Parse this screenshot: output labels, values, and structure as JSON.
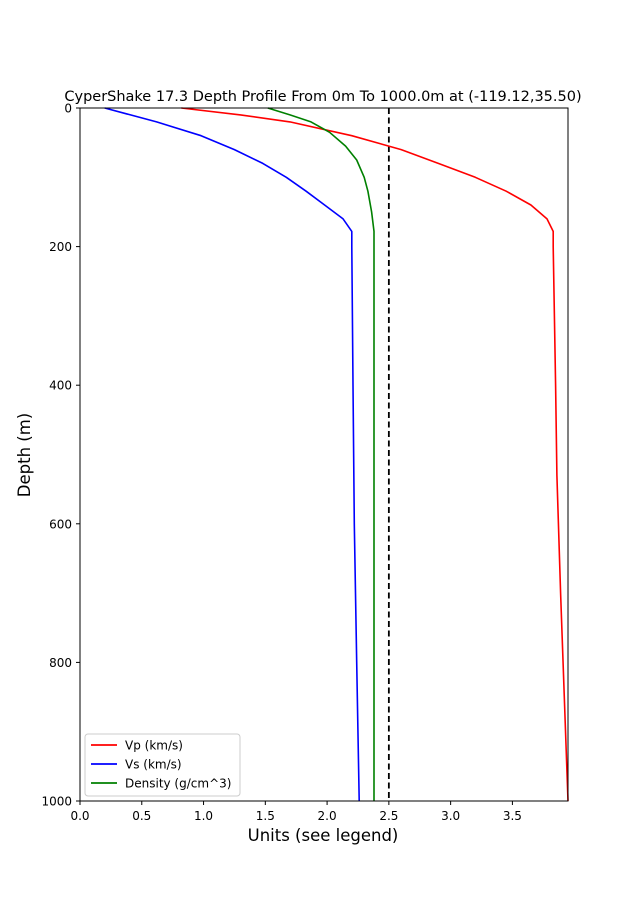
{
  "chart_data": {
    "type": "line",
    "title": "CyperShake 17.3 Depth Profile From 0m To 1000.0m at (-119.12,35.50)",
    "xlabel": "Units (see legend)",
    "ylabel": "Depth (m)",
    "xlim": [
      0,
      3.95
    ],
    "ylim": [
      1000,
      0
    ],
    "y_inverted": true,
    "grid": false,
    "legend_position": "lower-left",
    "x_ticks": [
      0.0,
      0.5,
      1.0,
      1.5,
      2.0,
      2.5,
      3.0,
      3.5
    ],
    "x_tick_labels": [
      "0.0",
      "0.5",
      "1.0",
      "1.5",
      "2.0",
      "2.5",
      "3.0",
      "3.5"
    ],
    "y_ticks": [
      0,
      200,
      400,
      600,
      800,
      1000
    ],
    "y_tick_labels": [
      "0",
      "200",
      "400",
      "600",
      "800",
      "1000"
    ],
    "reference_line": {
      "x": 2.5,
      "style": "dashed",
      "color": "#000000"
    },
    "series": [
      {
        "name": "Vp (km/s)",
        "color": "#ff0000",
        "points": [
          [
            0.82,
            0
          ],
          [
            1.3,
            10
          ],
          [
            1.7,
            20
          ],
          [
            2.2,
            40
          ],
          [
            2.6,
            60
          ],
          [
            2.9,
            80
          ],
          [
            3.2,
            100
          ],
          [
            3.45,
            120
          ],
          [
            3.65,
            140
          ],
          [
            3.78,
            160
          ],
          [
            3.83,
            178
          ],
          [
            3.83,
            200
          ],
          [
            3.84,
            300
          ],
          [
            3.85,
            400
          ],
          [
            3.86,
            530
          ],
          [
            3.89,
            700
          ],
          [
            3.92,
            850
          ],
          [
            3.95,
            1000
          ]
        ]
      },
      {
        "name": "Vs (km/s)",
        "color": "#0000ff",
        "points": [
          [
            0.2,
            0
          ],
          [
            0.62,
            20
          ],
          [
            0.98,
            40
          ],
          [
            1.25,
            60
          ],
          [
            1.48,
            80
          ],
          [
            1.67,
            100
          ],
          [
            1.83,
            120
          ],
          [
            1.98,
            140
          ],
          [
            2.13,
            160
          ],
          [
            2.2,
            178
          ],
          [
            2.2,
            200
          ],
          [
            2.21,
            400
          ],
          [
            2.22,
            600
          ],
          [
            2.24,
            800
          ],
          [
            2.26,
            1000
          ]
        ]
      },
      {
        "name": "Density (g/cm^3)",
        "color": "#008000",
        "points": [
          [
            1.52,
            0
          ],
          [
            1.7,
            10
          ],
          [
            1.87,
            20
          ],
          [
            2.02,
            35
          ],
          [
            2.15,
            55
          ],
          [
            2.24,
            75
          ],
          [
            2.3,
            100
          ],
          [
            2.33,
            120
          ],
          [
            2.36,
            150
          ],
          [
            2.38,
            178
          ],
          [
            2.38,
            200
          ],
          [
            2.38,
            400
          ],
          [
            2.38,
            600
          ],
          [
            2.38,
            800
          ],
          [
            2.38,
            1000
          ]
        ]
      }
    ]
  }
}
